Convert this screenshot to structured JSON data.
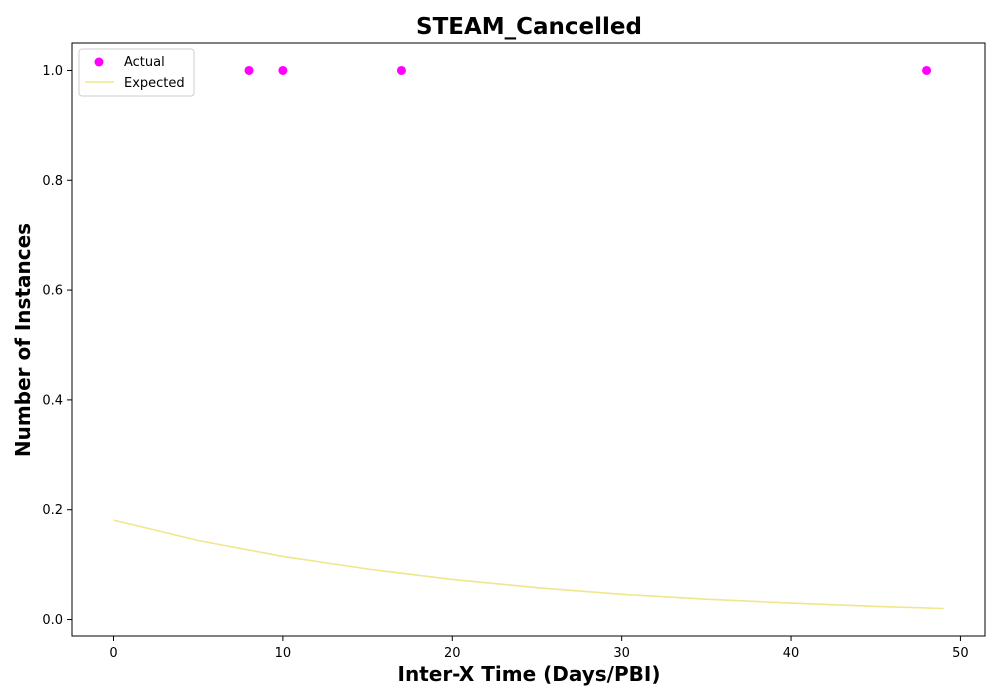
{
  "chart_data": {
    "type": "scatter",
    "title": "STEAM_Cancelled",
    "xlabel": "Inter-X Time (Days/PBI)",
    "ylabel": "Number of Instances",
    "xlim": [
      -2.45,
      51.45
    ],
    "ylim": [
      -0.03,
      1.05
    ],
    "x_ticks": [
      0,
      10,
      20,
      30,
      40,
      50
    ],
    "y_ticks": [
      0.0,
      0.2,
      0.4,
      0.6,
      0.8,
      1.0
    ],
    "x_tick_labels": [
      "0",
      "10",
      "20",
      "30",
      "40",
      "50"
    ],
    "y_tick_labels": [
      "0.0",
      "0.2",
      "0.4",
      "0.6",
      "0.8",
      "1.0"
    ],
    "grid": false,
    "legend_position": "top-left",
    "legend": [
      {
        "label": "Actual",
        "marker": "circle",
        "color": "#ff00ff"
      },
      {
        "label": "Expected",
        "marker": "line",
        "color": "#f0e68c"
      }
    ],
    "series": [
      {
        "name": "Actual",
        "kind": "scatter",
        "color": "#ff00ff",
        "x": [
          8,
          10,
          17,
          48
        ],
        "y": [
          1.0,
          1.0,
          1.0,
          1.0
        ]
      },
      {
        "name": "Expected",
        "kind": "line",
        "color": "#f0e68c",
        "x": [
          0,
          5,
          10,
          15,
          20,
          25,
          30,
          35,
          40,
          45,
          49
        ],
        "y": [
          0.181,
          0.144,
          0.115,
          0.092,
          0.073,
          0.058,
          0.046,
          0.037,
          0.03,
          0.024,
          0.02
        ]
      }
    ]
  }
}
